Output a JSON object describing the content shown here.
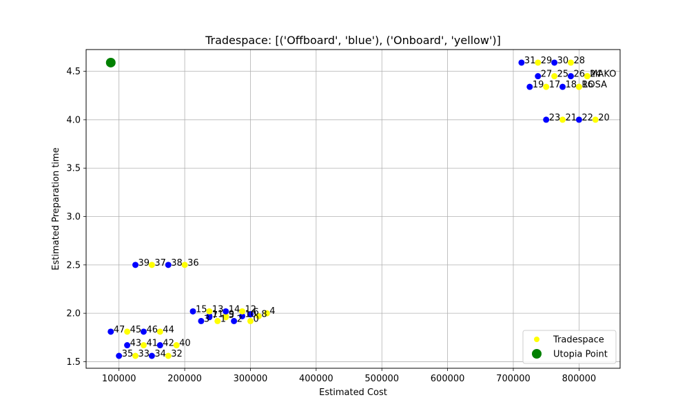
{
  "chart_data": {
    "type": "scatter",
    "title": "Tradespace: [('Offboard', 'blue'), ('Onboard', 'yellow')]",
    "xlabel": "Estimated Cost",
    "ylabel": "Estimated Preparation time",
    "xlim": [
      50000,
      862500
    ],
    "ylim": [
      1.432,
      4.725
    ],
    "x_ticks": [
      100000,
      200000,
      300000,
      400000,
      500000,
      600000,
      700000,
      800000
    ],
    "x_tick_labels": [
      "100000",
      "200000",
      "300000",
      "400000",
      "500000",
      "600000",
      "700000",
      "800000"
    ],
    "y_ticks": [
      1.5,
      2.0,
      2.5,
      3.0,
      3.5,
      4.0,
      4.5
    ],
    "y_tick_labels": [
      "1.5",
      "2.0",
      "2.5",
      "3.0",
      "3.5",
      "4.0",
      "4.5"
    ],
    "grid": true,
    "legend_position": "lower-right",
    "colors": {
      "offboard": "#0000ff",
      "onboard": "#ffff00",
      "utopia": "#008000"
    },
    "legend": [
      {
        "label": "Tradespace",
        "color": "#ffff00",
        "marker": "point"
      },
      {
        "label": "Utopia Point",
        "color": "#008000",
        "marker": "big-point"
      }
    ],
    "utopia_point": {
      "x": 87500,
      "y": 4.59
    },
    "series": [
      {
        "name": "Tradespace",
        "points": [
          {
            "label": "0",
            "x": 300000,
            "y": 1.92,
            "color": "#ffff00"
          },
          {
            "label": "1",
            "x": 250000,
            "y": 1.92,
            "color": "#ffff00"
          },
          {
            "label": "2",
            "x": 275000,
            "y": 1.92,
            "color": "#0000ff"
          },
          {
            "label": "3",
            "x": 225000,
            "y": 1.92,
            "color": "#0000ff"
          },
          {
            "label": "4",
            "x": 325000,
            "y": 2.0,
            "color": "#ffff00"
          },
          {
            "label": "5",
            "x": 262500,
            "y": 1.96,
            "color": "#ffff00"
          },
          {
            "label": "6",
            "x": 300000,
            "y": 1.99,
            "color": "#0000ff"
          },
          {
            "label": "7",
            "x": 237500,
            "y": 1.96,
            "color": "#0000ff"
          },
          {
            "label": "8",
            "x": 312500,
            "y": 1.97,
            "color": "#ffff00"
          },
          {
            "label": "9",
            "x": 262500,
            "y": 1.97,
            "color": "#ffff00"
          },
          {
            "label": "10",
            "x": 287500,
            "y": 1.97,
            "color": "#0000ff"
          },
          {
            "label": "11",
            "x": 237500,
            "y": 1.97,
            "color": "#0000ff"
          },
          {
            "label": "12",
            "x": 287500,
            "y": 2.02,
            "color": "#ffff00"
          },
          {
            "label": "13",
            "x": 237500,
            "y": 2.02,
            "color": "#ffff00"
          },
          {
            "label": "14",
            "x": 262500,
            "y": 2.02,
            "color": "#0000ff"
          },
          {
            "label": "15",
            "x": 212500,
            "y": 2.02,
            "color": "#0000ff"
          },
          {
            "label": "16",
            "x": 800000,
            "y": 4.34,
            "color": "#ffff00"
          },
          {
            "label": "17",
            "x": 750000,
            "y": 4.34,
            "color": "#ffff00"
          },
          {
            "label": "18",
            "x": 775000,
            "y": 4.34,
            "color": "#0000ff"
          },
          {
            "label": "19",
            "x": 725000,
            "y": 4.34,
            "color": "#0000ff"
          },
          {
            "label": "20",
            "x": 825000,
            "y": 4.0,
            "color": "#ffff00"
          },
          {
            "label": "21",
            "x": 775000,
            "y": 4.0,
            "color": "#ffff00"
          },
          {
            "label": "22",
            "x": 800000,
            "y": 4.0,
            "color": "#0000ff"
          },
          {
            "label": "23",
            "x": 750000,
            "y": 4.0,
            "color": "#0000ff"
          },
          {
            "label": "24",
            "x": 812500,
            "y": 4.45,
            "color": "#ffff00"
          },
          {
            "label": "25",
            "x": 762500,
            "y": 4.45,
            "color": "#ffff00"
          },
          {
            "label": "26",
            "x": 787500,
            "y": 4.45,
            "color": "#0000ff"
          },
          {
            "label": "27",
            "x": 737500,
            "y": 4.45,
            "color": "#0000ff"
          },
          {
            "label": "28",
            "x": 787500,
            "y": 4.59,
            "color": "#ffff00"
          },
          {
            "label": "29",
            "x": 737500,
            "y": 4.59,
            "color": "#ffff00"
          },
          {
            "label": "30",
            "x": 762500,
            "y": 4.59,
            "color": "#0000ff"
          },
          {
            "label": "31",
            "x": 712500,
            "y": 4.59,
            "color": "#0000ff"
          },
          {
            "label": "32",
            "x": 175000,
            "y": 1.56,
            "color": "#ffff00"
          },
          {
            "label": "33",
            "x": 125000,
            "y": 1.56,
            "color": "#ffff00"
          },
          {
            "label": "34",
            "x": 150000,
            "y": 1.56,
            "color": "#0000ff"
          },
          {
            "label": "35",
            "x": 100000,
            "y": 1.56,
            "color": "#0000ff"
          },
          {
            "label": "36",
            "x": 200000,
            "y": 2.5,
            "color": "#ffff00"
          },
          {
            "label": "37",
            "x": 150000,
            "y": 2.5,
            "color": "#ffff00"
          },
          {
            "label": "38",
            "x": 175000,
            "y": 2.5,
            "color": "#0000ff"
          },
          {
            "label": "39",
            "x": 125000,
            "y": 2.5,
            "color": "#0000ff"
          },
          {
            "label": "40",
            "x": 187500,
            "y": 1.67,
            "color": "#ffff00"
          },
          {
            "label": "41",
            "x": 137500,
            "y": 1.67,
            "color": "#ffff00"
          },
          {
            "label": "42",
            "x": 162500,
            "y": 1.67,
            "color": "#0000ff"
          },
          {
            "label": "43",
            "x": 112500,
            "y": 1.67,
            "color": "#0000ff"
          },
          {
            "label": "44",
            "x": 162500,
            "y": 1.81,
            "color": "#ffff00"
          },
          {
            "label": "45",
            "x": 112500,
            "y": 1.81,
            "color": "#ffff00"
          },
          {
            "label": "46",
            "x": 137500,
            "y": 1.81,
            "color": "#0000ff"
          },
          {
            "label": "47",
            "x": 87500,
            "y": 1.81,
            "color": "#0000ff"
          },
          {
            "label": "MAKO",
            "x": 812500,
            "y": 4.45,
            "color": "#ffff00"
          },
          {
            "label": "ROSA",
            "x": 800000,
            "y": 4.34,
            "color": "#ffff00"
          }
        ]
      }
    ]
  }
}
